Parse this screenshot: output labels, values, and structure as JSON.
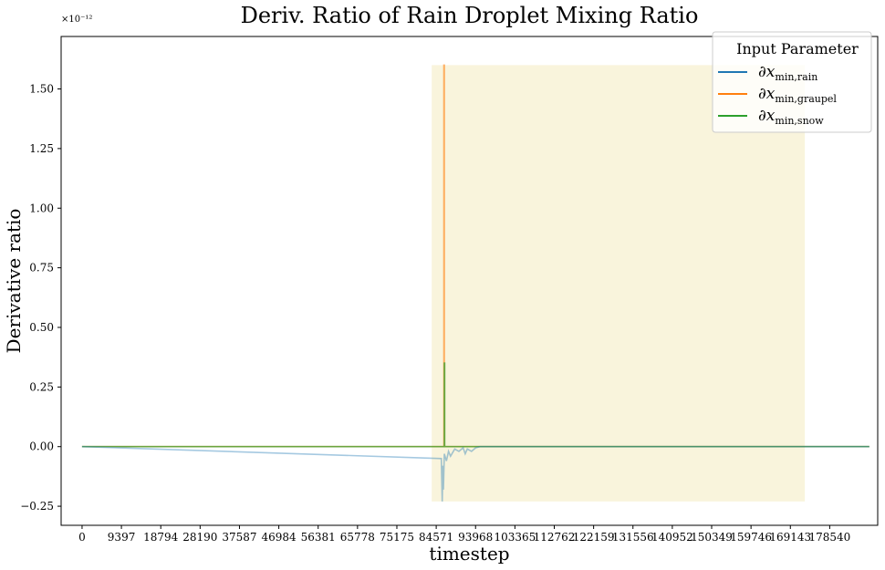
{
  "chart_data": {
    "type": "line",
    "title": "Deriv. Ratio of Rain Droplet Mixing Ratio",
    "xlabel": "timestep",
    "ylabel": "Derivative ratio",
    "y_offset_label": "×10⁻¹²",
    "xlim": [
      -5000,
      190000
    ],
    "ylim": [
      -0.33,
      1.72
    ],
    "x_ticks": [
      0,
      9397,
      18794,
      28190,
      37587,
      46984,
      56381,
      65778,
      75175,
      84571,
      93968,
      103365,
      112762,
      122159,
      131556,
      140952,
      150349,
      159746,
      169143,
      178540
    ],
    "x_tick_labels": [
      "0",
      "9397",
      "18794",
      "28190",
      "37587",
      "46984",
      "56381",
      "65778",
      "75175",
      "84571",
      "93968",
      "103365",
      "112762",
      "122159",
      "131556",
      "140952",
      "150349",
      "159746",
      "169143",
      "178540"
    ],
    "y_ticks": [
      -0.25,
      0.0,
      0.25,
      0.5,
      0.75,
      1.0,
      1.25,
      1.5
    ],
    "y_tick_labels": [
      "−0.25",
      "0.00",
      "0.25",
      "0.50",
      "0.75",
      "1.00",
      "1.25",
      "1.50"
    ],
    "highlight_region": {
      "x": [
        83500,
        172600
      ],
      "y": [
        -0.23,
        1.6
      ],
      "color": "#f9f4dc"
    },
    "legend": {
      "title": "Input Parameter",
      "position": "top-right",
      "entries": [
        {
          "symbol": "∂x",
          "sub": "min,rain",
          "color": "#1f77b4"
        },
        {
          "symbol": "∂x",
          "sub": "min,graupel",
          "color": "#ff7f0e"
        },
        {
          "symbol": "∂x",
          "sub": "min,snow",
          "color": "#2ca02c"
        }
      ]
    },
    "series": [
      {
        "color": "#ff7f0e",
        "opacity": 0.6,
        "x": [
          0,
          86400,
          86400,
          86500,
          86500,
          188000
        ],
        "y": [
          0,
          0,
          1.6,
          1.6,
          0,
          0
        ]
      },
      {
        "color": "#2ca02c",
        "opacity": 0.7,
        "x": [
          0,
          86500,
          86500,
          86600,
          86600,
          188000
        ],
        "y": [
          0,
          0,
          0.35,
          0.35,
          0,
          0
        ]
      },
      {
        "color": "#1f77b4",
        "opacity": 0.4,
        "x": [
          0,
          85800,
          86000,
          86150,
          86300,
          86500,
          87000,
          87500,
          88000,
          89000,
          90000,
          91000,
          91500,
          92000,
          93000,
          94000,
          95000,
          188000
        ],
        "y": [
          0,
          -0.05,
          -0.23,
          -0.08,
          -0.18,
          -0.03,
          -0.06,
          -0.02,
          -0.04,
          -0.01,
          -0.02,
          -0.005,
          -0.03,
          -0.01,
          -0.02,
          -0.005,
          0,
          0
        ]
      }
    ]
  }
}
